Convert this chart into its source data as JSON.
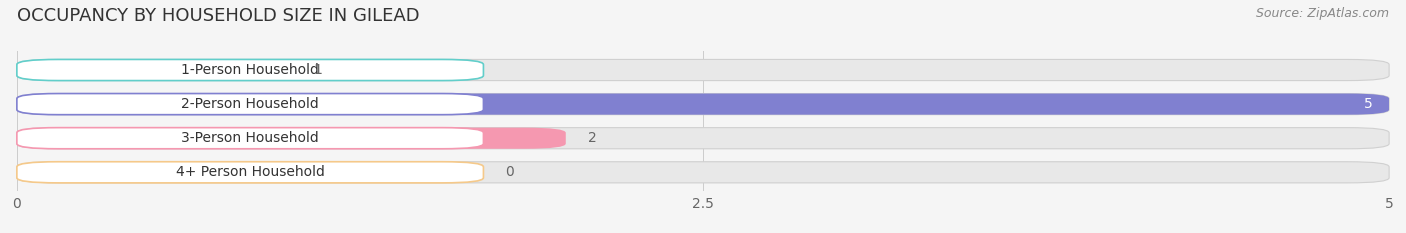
{
  "title": "OCCUPANCY BY HOUSEHOLD SIZE IN GILEAD",
  "source": "Source: ZipAtlas.com",
  "categories": [
    "1-Person Household",
    "2-Person Household",
    "3-Person Household",
    "4+ Person Household"
  ],
  "values": [
    1,
    5,
    2,
    0
  ],
  "bar_colors": [
    "#62ceca",
    "#8080d0",
    "#f598b0",
    "#f5c98a"
  ],
  "label_border_colors": [
    "#62ceca",
    "#8080d0",
    "#f598b0",
    "#f5c98a"
  ],
  "xlim": [
    0,
    5
  ],
  "xticks": [
    0,
    2.5,
    5
  ],
  "background_color": "#f5f5f5",
  "bar_bg_color": "#e8e8e8",
  "title_fontsize": 13,
  "source_fontsize": 9,
  "label_fontsize": 10,
  "value_fontsize": 10
}
